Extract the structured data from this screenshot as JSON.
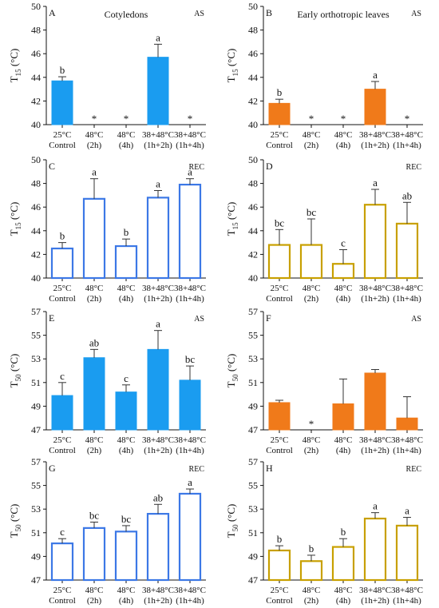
{
  "colors": {
    "blue": "#1a9cf0",
    "blue_edge": "#3c78e6",
    "orange": "#f07a1a",
    "gold_edge": "#c8a000",
    "open_fill": "#ffffff"
  },
  "chart_data": [
    {
      "type": "bar",
      "panel_letter": "A",
      "panel_title": "Cotyledons",
      "tag": "AS",
      "ylabel_main": "T",
      "ylabel_sub": "15",
      "ylabel_unit": " (°C)",
      "ylim": [
        40,
        50
      ],
      "yticks": [
        "40",
        "42",
        "44",
        "46",
        "48",
        "50"
      ],
      "categories": [
        [
          "25°C",
          "Control"
        ],
        [
          "48°C",
          "(2h)"
        ],
        [
          "48°C",
          "(4h)"
        ],
        [
          "38+48°C",
          "(1h+2h)"
        ],
        [
          "38+48°C",
          "(1h+4h)"
        ]
      ],
      "style": "filled-blue",
      "values": [
        43.7,
        null,
        null,
        45.7,
        null
      ],
      "errors": [
        0.35,
        null,
        null,
        1.1,
        null
      ],
      "letters": [
        "b",
        "*",
        "*",
        "a",
        "*"
      ]
    },
    {
      "type": "bar",
      "panel_letter": "B",
      "panel_title": "Early orthotropic leaves",
      "tag": "AS",
      "ylabel_main": "T",
      "ylabel_sub": "15",
      "ylabel_unit": " (°C)",
      "ylim": [
        40,
        50
      ],
      "yticks": [
        "40",
        "42",
        "44",
        "46",
        "48",
        "50"
      ],
      "categories": [
        [
          "25°C",
          "Control"
        ],
        [
          "48°C",
          "(2h)"
        ],
        [
          "48°C",
          "(4h)"
        ],
        [
          "38+48°C",
          "(1h+2h)"
        ],
        [
          "38+48°C",
          "(1h+4h)"
        ]
      ],
      "style": "filled-orange",
      "values": [
        41.8,
        null,
        null,
        43.0,
        null
      ],
      "errors": [
        0.35,
        null,
        null,
        0.65,
        null
      ],
      "letters": [
        "b",
        "*",
        "*",
        "a",
        "*"
      ]
    },
    {
      "type": "bar",
      "panel_letter": "C",
      "panel_title": "",
      "tag": "REC",
      "ylabel_main": "T",
      "ylabel_sub": "15",
      "ylabel_unit": " (°C)",
      "ylim": [
        40,
        50
      ],
      "yticks": [
        "40",
        "42",
        "44",
        "46",
        "48",
        "50"
      ],
      "categories": [
        [
          "25°C",
          "Control"
        ],
        [
          "48°C",
          "(2h)"
        ],
        [
          "48°C",
          "(4h)"
        ],
        [
          "38+48°C",
          "(1h+2h)"
        ],
        [
          "38+48°C",
          "(1h+4h)"
        ]
      ],
      "style": "open-blue",
      "values": [
        42.5,
        46.7,
        42.7,
        46.8,
        47.9
      ],
      "errors": [
        0.5,
        1.7,
        0.6,
        0.6,
        0.5
      ],
      "letters": [
        "b",
        "a",
        "b",
        "a",
        "a"
      ]
    },
    {
      "type": "bar",
      "panel_letter": "D",
      "panel_title": "",
      "tag": "REC",
      "ylabel_main": "T",
      "ylabel_sub": "15",
      "ylabel_unit": " (°C)",
      "ylim": [
        40,
        50
      ],
      "yticks": [
        "40",
        "42",
        "44",
        "46",
        "48",
        "50"
      ],
      "categories": [
        [
          "25°C",
          "Control"
        ],
        [
          "48°C",
          "(2h)"
        ],
        [
          "48°C",
          "(4h)"
        ],
        [
          "38+48°C",
          "(1h+2h)"
        ],
        [
          "38+48°C",
          "(1h+4h)"
        ]
      ],
      "style": "open-gold",
      "values": [
        42.8,
        42.8,
        41.2,
        46.2,
        44.6
      ],
      "errors": [
        1.3,
        2.2,
        1.2,
        1.3,
        1.8
      ],
      "letters": [
        "bc",
        "bc",
        "c",
        "a",
        "ab"
      ]
    },
    {
      "type": "bar",
      "panel_letter": "E",
      "panel_title": "",
      "tag": "AS",
      "ylabel_main": "T",
      "ylabel_sub": "50",
      "ylabel_unit": " (°C)",
      "ylim": [
        47,
        57
      ],
      "yticks": [
        "47",
        "49",
        "51",
        "53",
        "55",
        "57"
      ],
      "categories": [
        [
          "25°C",
          "Control"
        ],
        [
          "48°C",
          "(2h)"
        ],
        [
          "48°C",
          "(4h)"
        ],
        [
          "38+48°C",
          "(1h+2h)"
        ],
        [
          "38+48°C",
          "(1h+4h)"
        ]
      ],
      "style": "filled-blue",
      "values": [
        49.9,
        53.1,
        50.2,
        53.8,
        51.2
      ],
      "errors": [
        1.1,
        0.7,
        0.6,
        1.6,
        1.2
      ],
      "letters": [
        "c",
        "ab",
        "c",
        "a",
        "bc"
      ]
    },
    {
      "type": "bar",
      "panel_letter": "F",
      "panel_title": "",
      "tag": "AS",
      "ylabel_main": "T",
      "ylabel_sub": "50",
      "ylabel_unit": " (°C)",
      "ylim": [
        47,
        57
      ],
      "yticks": [
        "47",
        "49",
        "51",
        "53",
        "55",
        "57"
      ],
      "categories": [
        [
          "25°C",
          "Control"
        ],
        [
          "48°C",
          "(2h)"
        ],
        [
          "48°C",
          "(4h)"
        ],
        [
          "38+48°C",
          "(1h+2h)"
        ],
        [
          "38+48°C",
          "(1h+4h)"
        ]
      ],
      "style": "filled-orange",
      "values": [
        49.3,
        null,
        49.2,
        51.8,
        48.0
      ],
      "errors": [
        0.2,
        null,
        2.1,
        0.3,
        1.8
      ],
      "letters": [
        "",
        "*",
        "",
        "",
        ""
      ]
    },
    {
      "type": "bar",
      "panel_letter": "G",
      "panel_title": "",
      "tag": "REC",
      "ylabel_main": "T",
      "ylabel_sub": "50",
      "ylabel_unit": " (°C)",
      "ylim": [
        47,
        57
      ],
      "yticks": [
        "47",
        "49",
        "51",
        "53",
        "55",
        "57"
      ],
      "categories": [
        [
          "25°C",
          "Control"
        ],
        [
          "48°C",
          "(2h)"
        ],
        [
          "48°C",
          "(4h)"
        ],
        [
          "38+48°C",
          "(1h+2h)"
        ],
        [
          "38+48°C",
          "(1h+4h)"
        ]
      ],
      "style": "open-blue",
      "values": [
        50.1,
        51.4,
        51.1,
        52.6,
        54.3
      ],
      "errors": [
        0.4,
        0.5,
        0.5,
        0.8,
        0.4
      ],
      "letters": [
        "c",
        "bc",
        "bc",
        "ab",
        "a"
      ]
    },
    {
      "type": "bar",
      "panel_letter": "H",
      "panel_title": "",
      "tag": "REC",
      "ylabel_main": "T",
      "ylabel_sub": "50",
      "ylabel_unit": " (°C)",
      "ylim": [
        47,
        57
      ],
      "yticks": [
        "47",
        "49",
        "51",
        "53",
        "55",
        "57"
      ],
      "categories": [
        [
          "25°C",
          "Control"
        ],
        [
          "48°C",
          "(2h)"
        ],
        [
          "48°C",
          "(4h)"
        ],
        [
          "38+48°C",
          "(1h+2h)"
        ],
        [
          "38+48°C",
          "(1h+4h)"
        ]
      ],
      "style": "open-gold",
      "values": [
        49.5,
        48.6,
        49.8,
        52.2,
        51.6
      ],
      "errors": [
        0.4,
        0.5,
        0.7,
        0.5,
        0.7
      ],
      "letters": [
        "b",
        "b",
        "b",
        "a",
        "a"
      ]
    }
  ]
}
